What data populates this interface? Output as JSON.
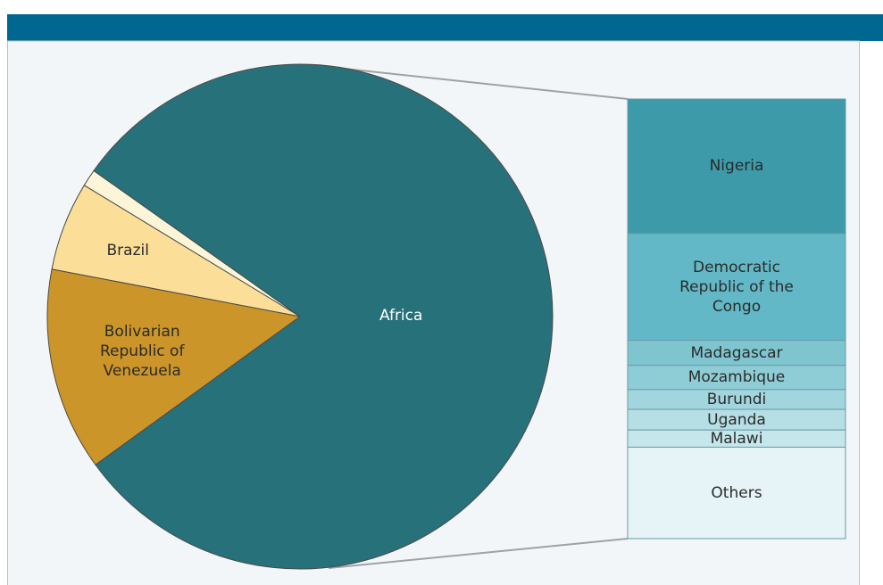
{
  "chart_data": {
    "type": "pie",
    "pie": {
      "categories": [
        null,
        "Brazil",
        "Bolivarian\nRepublic of\nVenezuela",
        "Africa"
      ],
      "values": [
        1.1,
        5.7,
        13,
        80.2
      ],
      "colors": [
        "#fdf5d8",
        "#fbdf98",
        "#cc9529",
        "#27717a"
      ]
    },
    "bar": {
      "categories": [
        "Nigeria",
        "Democratic\nRepublic of the Congo",
        "Madagascar",
        "Mozambique",
        "Burundi",
        "Uganda",
        "Malawi",
        "Others"
      ],
      "values": [
        30.6,
        24.3,
        5.7,
        5.5,
        4.5,
        4.7,
        3.9,
        20.8
      ],
      "colors": [
        "#3c9aa9",
        "#62b8c6",
        "#7ec5d0",
        "#8fcdd6",
        "#a2d6de",
        "#b5dfe5",
        "#c5e6eb",
        "#e6f3f7"
      ]
    }
  }
}
